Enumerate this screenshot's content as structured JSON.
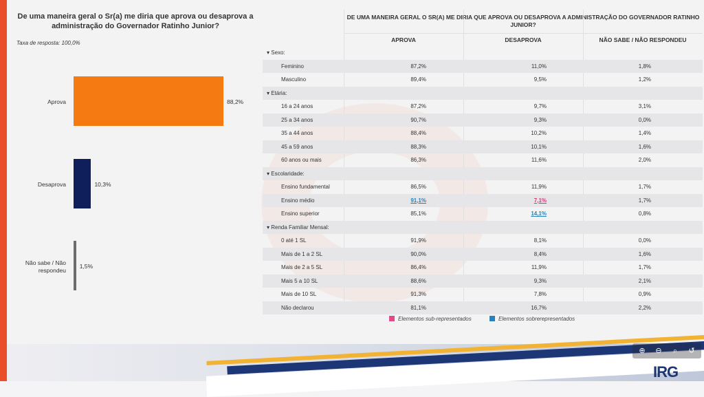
{
  "left": {
    "title": "De uma maneira geral o Sr(a) me diria que aprova ou desaprova a administração do Governador Ratinho Junior?",
    "response_rate": "Taxa de resposta: 100,0%",
    "bars": [
      {
        "label": "Aprova",
        "value": "88,2%",
        "pct": 88.2,
        "color": "#f57a12"
      },
      {
        "label": "Desaprova",
        "value": "10,3%",
        "pct": 10.3,
        "color": "#0f1f5c"
      },
      {
        "label": "Não sabe / Não respondeu",
        "value": "1,5%",
        "pct": 1.5,
        "color": "#6d6d6d"
      }
    ]
  },
  "table": {
    "title": "DE UMA MANEIRA GERAL O SR(A) ME DIRIA QUE APROVA OU DESAPROVA A ADMINISTRAÇÃO DO GOVERNADOR RATINHO JUNIOR?",
    "headers": [
      "APROVA",
      "DESAPROVA",
      "NÃO SABE / NÃO RESPONDEU"
    ],
    "rows": [
      {
        "group": "▾ Sexo:"
      },
      {
        "label": "Feminino",
        "v": [
          "87,2%",
          "11,0%",
          "1,8%"
        ]
      },
      {
        "label": "Masculino",
        "v": [
          "89,4%",
          "9,5%",
          "1,2%"
        ]
      },
      {
        "group": "▾ Etária:"
      },
      {
        "label": "16 a 24 anos",
        "v": [
          "87,2%",
          "9,7%",
          "3,1%"
        ]
      },
      {
        "label": "25 a 34 anos",
        "v": [
          "90,7%",
          "9,3%",
          "0,0%"
        ]
      },
      {
        "label": "35 a 44 anos",
        "v": [
          "88,4%",
          "10,2%",
          "1,4%"
        ]
      },
      {
        "label": "45 a 59 anos",
        "v": [
          "88,3%",
          "10,1%",
          "1,6%"
        ]
      },
      {
        "label": "60 anos ou mais",
        "v": [
          "86,3%",
          "11,6%",
          "2,0%"
        ]
      },
      {
        "group": "▾ Escolaridade:"
      },
      {
        "label": "Ensino fundamental",
        "v": [
          "86,5%",
          "11,9%",
          "1,7%"
        ]
      },
      {
        "label": "Ensino médio",
        "v": [
          "91,1%",
          "7,1%",
          "1,7%"
        ],
        "mark": [
          "over",
          "under",
          ""
        ]
      },
      {
        "label": "Ensino superior",
        "v": [
          "85,1%",
          "14,1%",
          "0,8%"
        ],
        "mark": [
          "",
          "over",
          ""
        ]
      },
      {
        "group": "▾ Renda Familiar Mensal:"
      },
      {
        "label": "0 até 1 SL",
        "v": [
          "91,9%",
          "8,1%",
          "0,0%"
        ]
      },
      {
        "label": "Mais de 1 a 2 SL",
        "v": [
          "90,0%",
          "8,4%",
          "1,6%"
        ]
      },
      {
        "label": "Mais de 2 a 5 SL",
        "v": [
          "86,4%",
          "11,9%",
          "1,7%"
        ]
      },
      {
        "label": "Mais 5 a 10 SL",
        "v": [
          "88,6%",
          "9,3%",
          "2,1%"
        ]
      },
      {
        "label": "Mais de 10 SL",
        "v": [
          "91,3%",
          "7,8%",
          "0,9%"
        ]
      },
      {
        "label": "Não declarou",
        "v": [
          "81,1%",
          "16,7%",
          "2,2%"
        ]
      }
    ]
  },
  "legend": {
    "under": "Elementos sub-representados",
    "over": "Elementos sobrerepresentados",
    "under_color": "#e24a8a",
    "over_color": "#2b80b9"
  },
  "toolbar": {
    "icons": [
      "zoom-in-icon",
      "zoom-out-icon",
      "search-icon",
      "reset-icon"
    ],
    "glyphs": [
      "⊕",
      "⊖",
      "⌕",
      "↺"
    ]
  },
  "logo": {
    "text": "IRG"
  }
}
